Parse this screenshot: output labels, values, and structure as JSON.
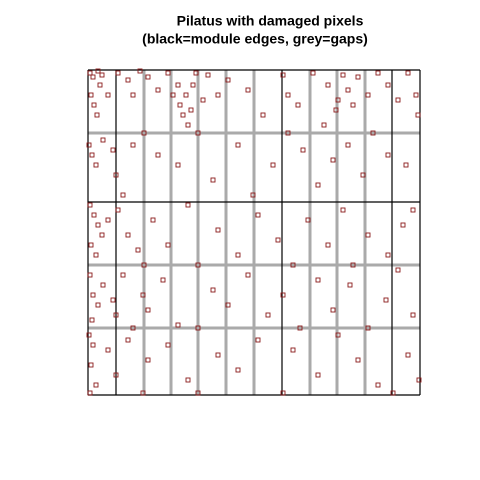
{
  "chart_data": {
    "type": "scatter",
    "title": "Pilatus with damaged pixels",
    "subtitle": "(black=module edges, grey=gaps)",
    "xlim": [
      0,
      332
    ],
    "ylim": [
      0,
      325
    ],
    "color": "#8b1a1a",
    "edge_color": "#000000",
    "gap_color": "#aaaaaa",
    "module_edges_x": [
      0,
      28,
      194,
      304,
      332
    ],
    "module_edges_y": [
      0,
      193,
      325
    ],
    "gaps_x": [
      56,
      83,
      110,
      138,
      166,
      222,
      249,
      277
    ],
    "gaps_y": [
      67,
      130,
      262
    ],
    "x": [
      2,
      5,
      10,
      14,
      3,
      6,
      9,
      12,
      20,
      30,
      40,
      45,
      52,
      60,
      70,
      80,
      85,
      90,
      92,
      95,
      98,
      100,
      103,
      105,
      108,
      115,
      120,
      130,
      140,
      160,
      175,
      195,
      200,
      210,
      225,
      240,
      250,
      255,
      260,
      265,
      270,
      280,
      290,
      300,
      310,
      320,
      328,
      330,
      248,
      236,
      1,
      4,
      8,
      15,
      25,
      28,
      35,
      45,
      56,
      70,
      90,
      110,
      125,
      150,
      165,
      185,
      200,
      215,
      230,
      245,
      260,
      275,
      285,
      300,
      318,
      2,
      6,
      10,
      14,
      3,
      8,
      20,
      30,
      40,
      50,
      56,
      65,
      80,
      100,
      110,
      130,
      150,
      170,
      190,
      205,
      220,
      240,
      255,
      265,
      280,
      300,
      315,
      325,
      2,
      5,
      10,
      4,
      15,
      25,
      28,
      35,
      45,
      55,
      60,
      75,
      90,
      110,
      125,
      140,
      160,
      180,
      195,
      212,
      230,
      245,
      262,
      280,
      298,
      310,
      325,
      1,
      5,
      3,
      8,
      2,
      20,
      28,
      40,
      55,
      60,
      80,
      100,
      110,
      130,
      150,
      170,
      195,
      205,
      230,
      250,
      270,
      290,
      305,
      320,
      331
    ],
    "values": [
      322,
      318,
      324,
      320,
      300,
      290,
      280,
      310,
      300,
      322,
      315,
      300,
      324,
      318,
      305,
      322,
      300,
      310,
      290,
      280,
      300,
      270,
      285,
      310,
      322,
      295,
      320,
      300,
      315,
      305,
      280,
      320,
      300,
      290,
      322,
      310,
      295,
      320,
      305,
      290,
      318,
      300,
      322,
      310,
      295,
      322,
      300,
      280,
      285,
      270,
      250,
      240,
      230,
      255,
      245,
      220,
      200,
      250,
      262,
      240,
      230,
      262,
      215,
      250,
      200,
      230,
      262,
      245,
      210,
      235,
      250,
      220,
      262,
      240,
      230,
      190,
      180,
      170,
      160,
      150,
      140,
      175,
      185,
      160,
      145,
      130,
      175,
      150,
      190,
      130,
      165,
      140,
      180,
      155,
      130,
      175,
      150,
      185,
      130,
      160,
      140,
      170,
      185,
      120,
      100,
      90,
      75,
      110,
      95,
      80,
      120,
      67,
      100,
      85,
      115,
      70,
      67,
      105,
      90,
      120,
      80,
      100,
      67,
      115,
      85,
      110,
      67,
      95,
      125,
      80,
      60,
      50,
      30,
      10,
      2,
      45,
      20,
      55,
      2,
      35,
      50,
      15,
      2,
      40,
      25,
      55,
      2,
      45,
      20,
      60,
      35,
      10,
      2,
      40,
      15
    ]
  }
}
